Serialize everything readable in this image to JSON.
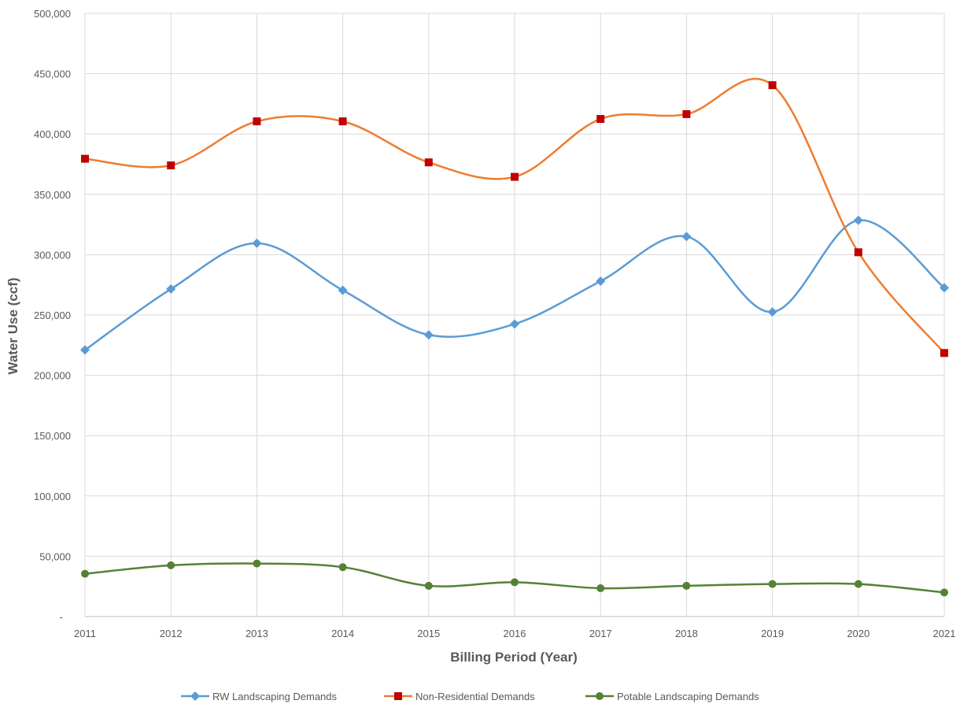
{
  "chart_data": {
    "type": "line",
    "xlabel": "Billing Period (Year)",
    "ylabel": "Water Use (ccf)",
    "ylim": [
      0,
      500000
    ],
    "y_ticks": [
      0,
      50000,
      100000,
      150000,
      200000,
      250000,
      300000,
      350000,
      400000,
      450000,
      500000
    ],
    "y_tick_labels": [
      "-",
      "50,000",
      "100,000",
      "150,000",
      "200,000",
      "250,000",
      "300,000",
      "350,000",
      "400,000",
      "450,000",
      "500,000"
    ],
    "categories": [
      "2011",
      "2012",
      "2013",
      "2014",
      "2015",
      "2016",
      "2017",
      "2018",
      "2019",
      "2020",
      "2021"
    ],
    "grid": "on",
    "legend_position": "bottom",
    "series": [
      {
        "name": "RW Landscaping Demands",
        "color": "#5B9BD5",
        "marker": "diamond",
        "values": [
          221000,
          271500,
          309500,
          270500,
          233500,
          242500,
          278000,
          315000,
          252500,
          328500,
          272500
        ]
      },
      {
        "name": "Non-Residential Demands",
        "color": "#ED7D31",
        "marker_color": "#C00000",
        "marker": "square",
        "values": [
          379500,
          374000,
          410500,
          410500,
          376500,
          364500,
          412500,
          416500,
          440500,
          302000,
          218500
        ]
      },
      {
        "name": "Potable Landscaping Demands",
        "color": "#548235",
        "marker": "circle",
        "values": [
          35500,
          42500,
          44000,
          41000,
          25500,
          28500,
          23500,
          25500,
          27000,
          27000,
          20000
        ]
      }
    ]
  }
}
